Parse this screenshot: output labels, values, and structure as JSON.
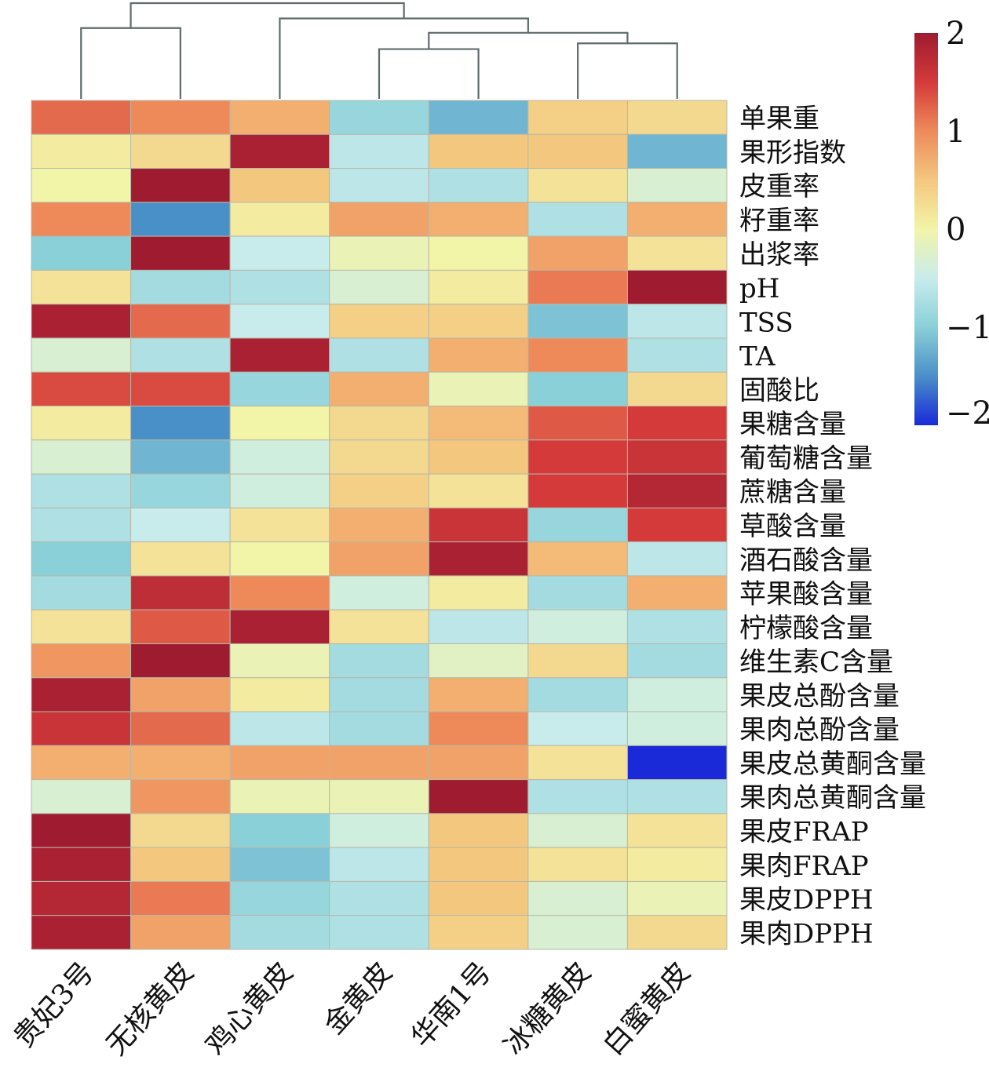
{
  "chart_data": {
    "type": "heatmap",
    "title": "",
    "columns": [
      "贵妃3号",
      "无核黄皮",
      "鸡心黄皮",
      "金黄皮",
      "华南1号",
      "冰糖黄皮",
      "白蜜黄皮"
    ],
    "rows": [
      "单果重",
      "果形指数",
      "皮重率",
      "籽重率",
      "出浆率",
      "pH",
      "TSS",
      "TA",
      "固酸比",
      "果糖含量",
      "葡萄糖含量",
      "蔗糖含量",
      "草酸含量",
      "酒石酸含量",
      "苹果酸含量",
      "柠檬酸含量",
      "维生素C含量",
      "果皮总酚含量",
      "果肉总酚含量",
      "果皮总黄酮含量",
      "果肉总黄酮含量",
      "果皮FRAP",
      "果肉FRAP",
      "果皮DPPH",
      "果肉DPPH"
    ],
    "values": [
      [
        1.2,
        1.0,
        0.7,
        -0.9,
        -1.2,
        0.4,
        0.3
      ],
      [
        0.1,
        0.3,
        1.9,
        -0.6,
        0.5,
        0.5,
        -1.2
      ],
      [
        0.0,
        2.0,
        0.5,
        -0.6,
        -0.7,
        0.2,
        -0.3
      ],
      [
        1.0,
        -1.5,
        0.1,
        0.8,
        0.7,
        -0.7,
        0.7
      ],
      [
        -1.0,
        2.0,
        -0.5,
        -0.1,
        0.0,
        0.8,
        0.2
      ],
      [
        0.2,
        -0.8,
        -0.7,
        -0.3,
        0.1,
        1.1,
        2.0
      ],
      [
        1.9,
        1.2,
        -0.5,
        0.4,
        0.4,
        -1.1,
        -0.6
      ],
      [
        -0.3,
        -0.7,
        1.9,
        -0.7,
        0.7,
        1.0,
        -0.7
      ],
      [
        1.4,
        1.4,
        -0.9,
        0.7,
        -0.1,
        -1.0,
        0.3
      ],
      [
        0.1,
        -1.5,
        0.0,
        0.3,
        0.6,
        1.3,
        1.5
      ],
      [
        -0.3,
        -1.2,
        -0.4,
        0.3,
        0.5,
        1.5,
        1.6
      ],
      [
        -0.7,
        -0.9,
        -0.4,
        0.4,
        0.2,
        1.5,
        1.8
      ],
      [
        -0.7,
        -0.5,
        0.2,
        0.7,
        1.6,
        -0.9,
        1.5
      ],
      [
        -1.0,
        0.2,
        0.0,
        0.8,
        1.9,
        0.6,
        -0.6
      ],
      [
        -0.8,
        1.7,
        1.0,
        -0.4,
        0.1,
        -0.8,
        0.7
      ],
      [
        0.2,
        1.3,
        1.9,
        0.2,
        -0.6,
        -0.4,
        -0.7
      ],
      [
        0.9,
        2.0,
        -0.1,
        -0.8,
        -0.2,
        0.3,
        -0.8
      ],
      [
        1.9,
        0.8,
        0.1,
        -0.8,
        0.7,
        -0.8,
        -0.4
      ],
      [
        1.6,
        1.2,
        -0.6,
        -0.8,
        1.0,
        -0.5,
        -0.4
      ],
      [
        0.7,
        0.7,
        0.8,
        0.8,
        0.8,
        0.2,
        -2.0
      ],
      [
        -0.3,
        0.9,
        -0.1,
        -0.1,
        2.0,
        -0.7,
        -0.7
      ],
      [
        2.0,
        0.3,
        -1.0,
        -0.4,
        0.5,
        -0.3,
        0.2
      ],
      [
        1.9,
        0.5,
        -1.1,
        -0.6,
        0.5,
        0.2,
        0.1
      ],
      [
        1.8,
        1.1,
        -0.9,
        -0.7,
        0.5,
        -0.3,
        -0.1
      ],
      [
        1.9,
        0.8,
        -0.8,
        -0.7,
        0.4,
        -0.3,
        0.3
      ]
    ],
    "colorbar": {
      "range": [
        -2,
        2
      ],
      "ticks": [
        "2",
        "1",
        "0",
        "−1",
        "−2"
      ],
      "tick_values": [
        2,
        1,
        0,
        -1,
        -2
      ]
    },
    "dendrogram": {
      "merges": [
        {
          "a": 0,
          "b": 1,
          "height": 0.74
        },
        {
          "a": 3,
          "b": 4,
          "height": 0.52
        },
        {
          "a": 5,
          "b": 6,
          "height": 0.58
        },
        {
          "a": "3-4",
          "b": "5-6",
          "height": 0.69
        },
        {
          "a": 2,
          "b": "3-6",
          "height": 0.84
        },
        {
          "a": "0-1",
          "b": "2-6",
          "height": 1.0
        }
      ]
    },
    "colors": {
      "line": "#5f6b6b",
      "grid": "#b8b8a8"
    }
  }
}
